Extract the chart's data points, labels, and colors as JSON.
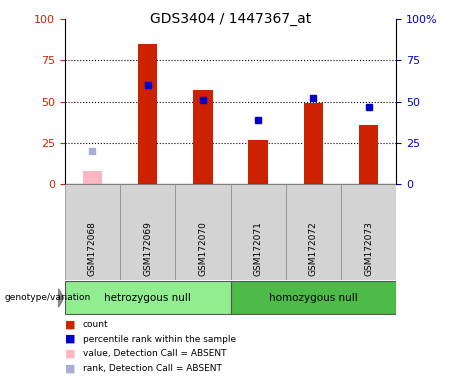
{
  "title": "GDS3404 / 1447367_at",
  "categories": [
    "GSM172068",
    "GSM172069",
    "GSM172070",
    "GSM172071",
    "GSM172072",
    "GSM172073"
  ],
  "count_values": [
    null,
    85,
    57,
    27,
    49,
    36
  ],
  "count_absent_values": [
    8,
    null,
    null,
    null,
    null,
    null
  ],
  "percentile_values": [
    null,
    60,
    51,
    39,
    52,
    47
  ],
  "percentile_absent_values": [
    20,
    null,
    null,
    null,
    null,
    null
  ],
  "group1_label": "hetrozygous null",
  "group2_label": "homozygous null",
  "group1_indices": [
    0,
    1,
    2
  ],
  "group2_indices": [
    3,
    4,
    5
  ],
  "group1_color": "#90EE90",
  "group2_color": "#4CBB47",
  "bar_color": "#CC2200",
  "bar_absent_color": "#FFB6C1",
  "dot_color": "#0000CC",
  "dot_absent_color": "#AAAADD",
  "ylim": [
    0,
    100
  ],
  "yticks": [
    0,
    25,
    50,
    75,
    100
  ],
  "grid_lines": [
    25,
    50,
    75
  ],
  "left_tick_color": "#CC2200",
  "right_tick_color": "#0000CC",
  "background_color": "#ffffff",
  "bar_width": 0.35,
  "legend_items": [
    {
      "label": "count",
      "color": "#CC2200"
    },
    {
      "label": "percentile rank within the sample",
      "color": "#0000CC"
    },
    {
      "label": "value, Detection Call = ABSENT",
      "color": "#FFB6C1"
    },
    {
      "label": "rank, Detection Call = ABSENT",
      "color": "#AAAADD"
    }
  ],
  "genotype_label": "genotype/variation"
}
